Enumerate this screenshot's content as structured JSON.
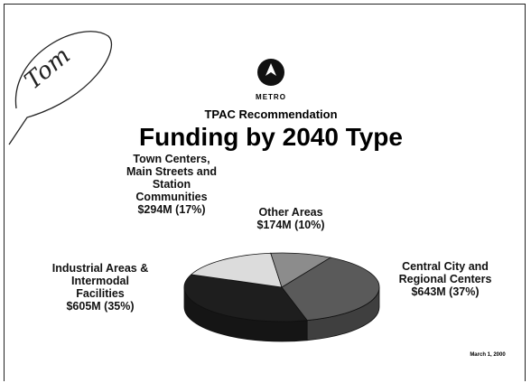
{
  "chart_data": {
    "type": "pie",
    "logo_text": "Metro",
    "subtitle": "TPAC Recommendation",
    "title": "Funding by 2040 Type",
    "date": "March 1, 2000",
    "handwriting": "Tom",
    "categories": [
      "Central City and Regional Centers",
      "Industrial Areas & Intermodal Facilities",
      "Town Centers, Main Streets and Station Communities",
      "Other Areas"
    ],
    "values": [
      643,
      605,
      294,
      174
    ],
    "value_labels": [
      "$643M (37%)",
      "$605M (35%)",
      "$294M (17%)",
      "$174M (10%)"
    ],
    "colors": [
      "#5a5a5a",
      "#1e1e1e",
      "#dcdcdc",
      "#8c8c8c"
    ]
  }
}
